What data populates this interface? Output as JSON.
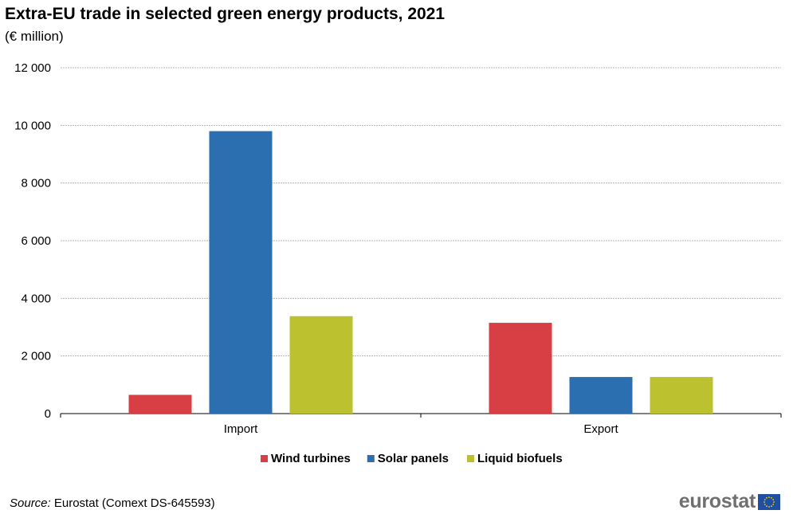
{
  "title": "Extra-EU trade in selected green energy products, 2021",
  "subtitle": "(€ million)",
  "source_label": "Source:",
  "source_text": "Eurostat (Comext  DS-645593)",
  "logo_text": "eurostat",
  "chart_data": {
    "type": "bar",
    "categories": [
      "Import",
      "Export"
    ],
    "series": [
      {
        "name": "Wind turbines",
        "color": "#d73f45",
        "values": [
          650,
          3150
        ]
      },
      {
        "name": "Solar panels",
        "color": "#2b6fb1",
        "values": [
          9800,
          1270
        ]
      },
      {
        "name": "Liquid biofuels",
        "color": "#bcc22f",
        "values": [
          3380,
          1270
        ]
      }
    ],
    "ylim": [
      0,
      12000
    ],
    "yticks": [
      0,
      2000,
      4000,
      6000,
      8000,
      10000,
      12000
    ],
    "ytick_labels": [
      "0",
      "2 000",
      "4 000",
      "6 000",
      "8 000",
      "10 000",
      "12 000"
    ],
    "grid": true,
    "legend_position": "bottom"
  }
}
